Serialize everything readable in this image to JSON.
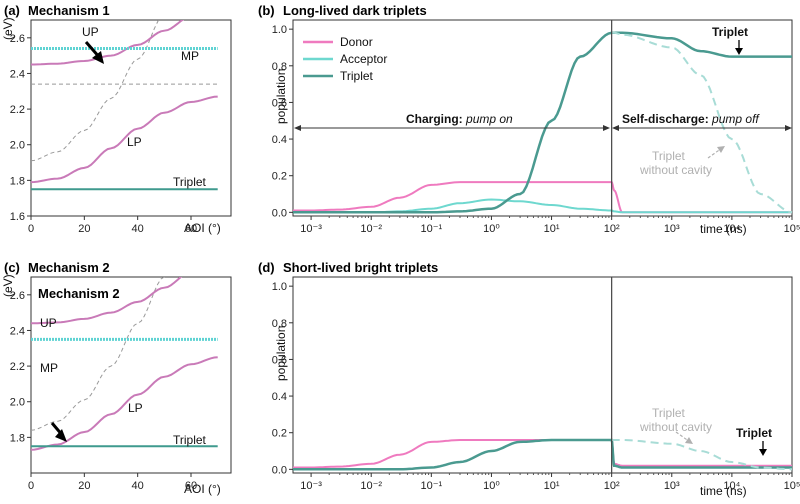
{
  "colors": {
    "up_lp": "#c97ab8",
    "mp": "#5fd3d3",
    "triplet_flat": "#3f9a8e",
    "donor": "#ef7abf",
    "acceptor": "#6ed8cf",
    "triplet": "#4a9a90",
    "triplet_no_cavity": "#a8dcd6",
    "bare_dashed": "#999999",
    "vline": "#444444"
  },
  "panels": {
    "a": {
      "letter": "(a)",
      "title": "Mechanism 1",
      "ylabel": "(eV)",
      "xlabel": "AOI (°)",
      "labels": {
        "up": "UP",
        "mp": "MP",
        "lp": "LP",
        "triplet": "Triplet"
      }
    },
    "b": {
      "letter": "(b)",
      "title": "Long-lived dark triplets",
      "ylabel": "population",
      "xlabel": "time (ns)",
      "legend": [
        "Donor",
        "Acceptor",
        "Triplet"
      ],
      "charging_bold": "Charging:",
      "charging_italic": "pump on",
      "discharge_bold": "Self-discharge:",
      "discharge_italic": "pump off",
      "triplet_no_cavity": [
        "Triplet",
        "without cavity"
      ],
      "triplet_label": "Triplet"
    },
    "c": {
      "letter": "(c)",
      "title": "Mechanism 2",
      "inner_title": "Mechanism 2",
      "ylabel": "(eV)",
      "xlabel": "AOI (°)",
      "labels": {
        "up": "UP",
        "mp": "MP",
        "lp": "LP",
        "triplet": "Triplet"
      }
    },
    "d": {
      "letter": "(d)",
      "title": "Short-lived bright triplets",
      "ylabel": "population",
      "xlabel": "time (ns)",
      "triplet_no_cavity": [
        "Triplet",
        "without cavity"
      ],
      "triplet_label": "Triplet"
    }
  },
  "chart_data": [
    {
      "id": "a",
      "type": "line",
      "title": "Mechanism 1",
      "xlabel": "AOI (°)",
      "ylabel": "(eV)",
      "xlim": [
        0,
        75
      ],
      "ylim": [
        1.6,
        2.7
      ],
      "xticks": [
        0,
        20,
        40,
        60
      ],
      "yticks": [
        1.6,
        1.8,
        2.0,
        2.2,
        2.4,
        2.6
      ],
      "x": [
        0,
        10,
        20,
        30,
        40,
        50,
        60,
        70
      ],
      "series": [
        {
          "name": "UP",
          "values": [
            2.45,
            2.455,
            2.47,
            2.5,
            2.56,
            2.64,
            2.72,
            2.8
          ]
        },
        {
          "name": "MP",
          "values": [
            2.54,
            2.54,
            2.54,
            2.54,
            2.54,
            2.54,
            2.54,
            2.54
          ]
        },
        {
          "name": "LP",
          "values": [
            1.79,
            1.81,
            1.87,
            1.98,
            2.09,
            2.18,
            2.24,
            2.27
          ]
        },
        {
          "name": "Triplet",
          "values": [
            1.75,
            1.75,
            1.75,
            1.75,
            1.75,
            1.75,
            1.75,
            1.75
          ]
        }
      ],
      "reference_lines": {
        "flat_dashed": 2.34,
        "rising_dashed": [
          1.91,
          1.96,
          2.08,
          2.26,
          2.48,
          2.73,
          3.0,
          3.3
        ]
      }
    },
    {
      "id": "b",
      "type": "line",
      "title": "Long-lived dark triplets",
      "xlabel": "time (ns)",
      "ylabel": "population",
      "xscale": "log",
      "xlim": [
        0.0005,
        100000
      ],
      "ylim": [
        -0.02,
        1.05
      ],
      "xticks": [
        "10^-3",
        "10^-2",
        "10^-1",
        "10^0",
        "10^1",
        "10^2",
        "10^3",
        "10^4",
        "10^5"
      ],
      "yticks": [
        0.0,
        0.2,
        0.4,
        0.6,
        0.8,
        1.0
      ],
      "legend_position": "top-left",
      "x": [
        0.0005,
        0.001,
        0.003,
        0.01,
        0.03,
        0.1,
        0.3,
        1,
        3,
        10,
        30,
        100,
        110,
        150,
        1000,
        3000,
        10000,
        30000,
        100000
      ],
      "series": [
        {
          "name": "Donor",
          "values": [
            0.01,
            0.01,
            0.015,
            0.03,
            0.08,
            0.15,
            0.165,
            0.165,
            0.165,
            0.165,
            0.165,
            0.165,
            0.12,
            0.0,
            0.0,
            0.0,
            0.0,
            0.0,
            0.0
          ]
        },
        {
          "name": "Acceptor",
          "values": [
            0.0,
            0.0,
            0.0,
            0.0,
            0.005,
            0.02,
            0.05,
            0.07,
            0.06,
            0.04,
            0.02,
            0.01,
            0.005,
            0.0,
            0.0,
            0.0,
            0.0,
            0.0,
            0.0
          ]
        },
        {
          "name": "Triplet",
          "values": [
            0.0,
            0.0,
            0.0,
            0.0,
            0.0,
            0.0,
            0.005,
            0.02,
            0.1,
            0.5,
            0.85,
            0.98,
            0.98,
            0.98,
            0.95,
            0.88,
            0.85,
            0.85,
            0.85
          ]
        },
        {
          "name": "Triplet without cavity",
          "values": [
            null,
            null,
            null,
            null,
            null,
            null,
            null,
            null,
            null,
            null,
            null,
            0.98,
            0.98,
            0.97,
            0.9,
            0.75,
            0.4,
            0.1,
            0.0
          ]
        }
      ],
      "vline_x": 100
    },
    {
      "id": "c",
      "type": "line",
      "title": "Mechanism 2",
      "xlabel": "AOI (°)",
      "ylabel": "(eV)",
      "xlim": [
        0,
        75
      ],
      "ylim": [
        1.6,
        2.7
      ],
      "xticks": [
        0,
        20,
        40,
        60
      ],
      "yticks": [
        1.8,
        2.0,
        2.2,
        2.4,
        2.6
      ],
      "x": [
        0,
        10,
        20,
        30,
        40,
        50,
        60,
        70
      ],
      "series": [
        {
          "name": "UP",
          "values": [
            2.44,
            2.445,
            2.465,
            2.5,
            2.56,
            2.64,
            2.73,
            2.82
          ]
        },
        {
          "name": "MP",
          "values": [
            2.35,
            2.35,
            2.35,
            2.35,
            2.35,
            2.35,
            2.35,
            2.35
          ]
        },
        {
          "name": "LP",
          "values": [
            1.73,
            1.76,
            1.83,
            1.93,
            2.04,
            2.14,
            2.21,
            2.25
          ]
        },
        {
          "name": "Triplet",
          "values": [
            1.75,
            1.75,
            1.75,
            1.75,
            1.75,
            1.75,
            1.75,
            1.75
          ]
        }
      ],
      "reference_lines": {
        "rising_dashed": [
          1.84,
          1.89,
          2.01,
          2.2,
          2.44,
          2.7,
          2.98,
          3.3
        ]
      }
    },
    {
      "id": "d",
      "type": "line",
      "title": "Short-lived bright triplets",
      "xlabel": "time (ns)",
      "ylabel": "population",
      "xscale": "log",
      "xlim": [
        0.0005,
        100000
      ],
      "ylim": [
        -0.02,
        1.05
      ],
      "xticks": [
        "10^-3",
        "10^-2",
        "10^-1",
        "10^0",
        "10^1",
        "10^2",
        "10^3",
        "10^4",
        "10^5"
      ],
      "yticks": [
        0.0,
        0.2,
        0.4,
        0.6,
        0.8,
        1.0
      ],
      "x": [
        0.0005,
        0.001,
        0.003,
        0.01,
        0.03,
        0.1,
        0.3,
        1,
        3,
        10,
        30,
        100,
        110,
        150,
        1000,
        3000,
        10000,
        30000,
        100000
      ],
      "series": [
        {
          "name": "Donor",
          "values": [
            0.01,
            0.01,
            0.015,
            0.03,
            0.08,
            0.15,
            0.16,
            0.16,
            0.16,
            0.16,
            0.16,
            0.16,
            0.03,
            0.02,
            0.02,
            0.02,
            0.02,
            0.02,
            0.02
          ]
        },
        {
          "name": "Triplet",
          "values": [
            0.0,
            0.0,
            0.0,
            0.0,
            0.0,
            0.01,
            0.04,
            0.1,
            0.15,
            0.16,
            0.16,
            0.16,
            0.02,
            0.01,
            0.01,
            0.01,
            0.01,
            0.01,
            0.01
          ]
        },
        {
          "name": "Triplet without cavity",
          "values": [
            null,
            null,
            null,
            null,
            null,
            null,
            null,
            null,
            null,
            null,
            null,
            0.16,
            0.16,
            0.16,
            0.14,
            0.1,
            0.04,
            0.01,
            0.0
          ]
        }
      ],
      "vline_x": 100
    }
  ]
}
